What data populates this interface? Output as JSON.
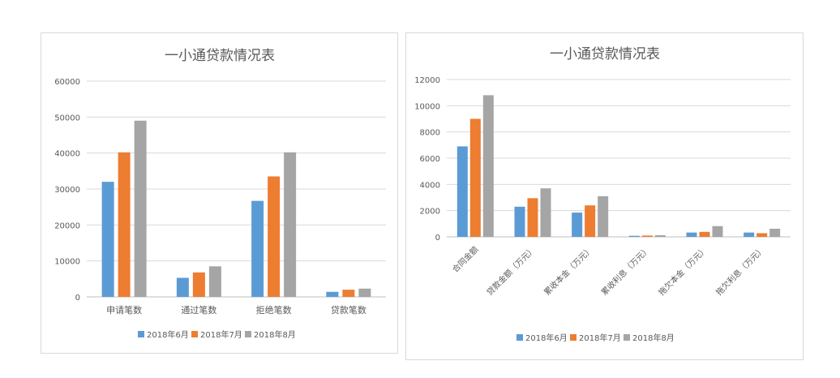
{
  "colors": {
    "series": [
      "#5b9bd5",
      "#ed7d31",
      "#a5a5a5"
    ],
    "grid": "#d9d9d9",
    "text": "#595959",
    "title": "#595959"
  },
  "chart_data": [
    {
      "type": "bar",
      "title": "一小通贷款情况表",
      "categories": [
        "申请笔数",
        "通过笔数",
        "拒绝笔数",
        "贷款笔数"
      ],
      "series": [
        {
          "name": "2018年6月",
          "values": [
            32000,
            5300,
            26700,
            1400
          ]
        },
        {
          "name": "2018年7月",
          "values": [
            40200,
            6800,
            33500,
            2000
          ]
        },
        {
          "name": "2018年8月",
          "values": [
            49000,
            8500,
            40200,
            2300
          ]
        }
      ],
      "ylim": [
        0,
        60000
      ],
      "yticks": [
        "0",
        "10000",
        "20000",
        "30000",
        "40000",
        "50000",
        "60000"
      ],
      "grid": true,
      "legend": "bottom"
    },
    {
      "type": "bar",
      "title": "一小通贷款情况表",
      "categories": [
        "合同金额",
        "贷款金额（万元）",
        "累收本金（万元）",
        "累收利息（万元）",
        "拖欠本金（万元）",
        "拖欠利息（万元）"
      ],
      "series": [
        {
          "name": "2018年6月",
          "values": [
            6900,
            2300,
            1850,
            80,
            330,
            330
          ]
        },
        {
          "name": "2018年7月",
          "values": [
            9000,
            2950,
            2400,
            100,
            380,
            280
          ]
        },
        {
          "name": "2018年8月",
          "values": [
            10800,
            3700,
            3100,
            130,
            820,
            620
          ]
        }
      ],
      "ylim": [
        0,
        12000
      ],
      "yticks": [
        "0",
        "2000",
        "4000",
        "6000",
        "8000",
        "10000",
        "12000"
      ],
      "grid": true,
      "legend": "bottom",
      "xtick_rotation": "diagonal"
    }
  ]
}
